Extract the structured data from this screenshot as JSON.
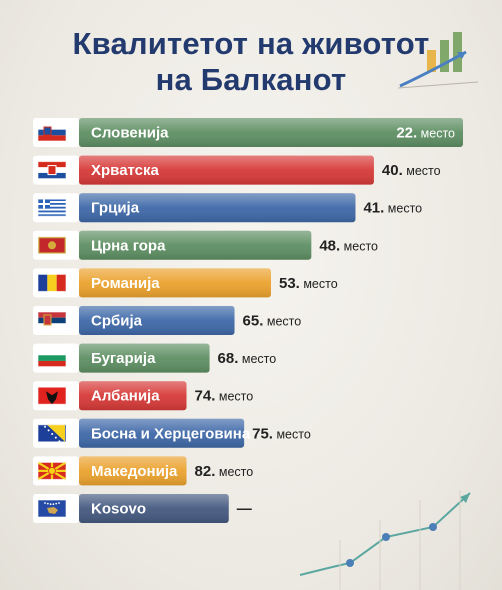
{
  "title_line1": "Квалитетот на животот",
  "title_line2": "на Балканот",
  "rank_suffix": "место",
  "chart_data": {
    "type": "bar",
    "orientation": "horizontal",
    "title": "Квалитетот на животот на Балканот",
    "categories": [
      "Словенија",
      "Хрватска",
      "Грција",
      "Црна гора",
      "Романија",
      "Србија",
      "Бугарија",
      "Албанија",
      "Босна и Херцеговина",
      "Македонија",
      "Kosovo"
    ],
    "ranks": [
      22,
      40,
      41,
      48,
      53,
      65,
      68,
      74,
      75,
      82,
      null
    ],
    "rank_labels": [
      "22.",
      "40.",
      "41.",
      "48.",
      "53.",
      "65.",
      "68.",
      "74.",
      "75.",
      "82.",
      "—"
    ],
    "relative_length": [
      1.0,
      0.768,
      0.72,
      0.605,
      0.5,
      0.405,
      0.34,
      0.28,
      0.43,
      0.28,
      0.39
    ],
    "colors": [
      "#5e8f63",
      "#d63a38",
      "#3f69a8",
      "#5e8f63",
      "#eba22e",
      "#3f69a8",
      "#5e8f63",
      "#d63a38",
      "#3f69a8",
      "#eba22e",
      "#455a80"
    ],
    "flags": [
      "flag-slovenia",
      "flag-croatia",
      "flag-greece",
      "flag-montenegro",
      "flag-romania",
      "flag-serbia",
      "flag-bulgaria",
      "flag-albania",
      "flag-bosnia",
      "flag-macedonia",
      "flag-kosovo"
    ]
  }
}
